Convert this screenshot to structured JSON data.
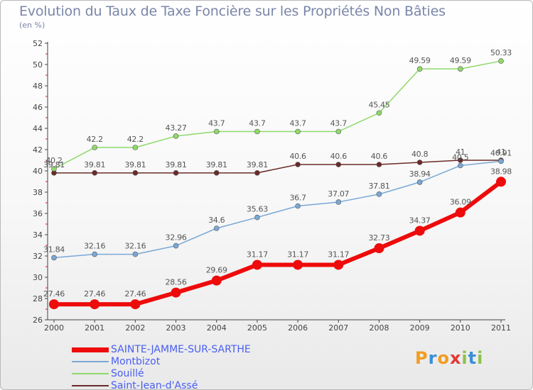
{
  "title": "Evolution du Taux de Taxe Foncière sur les Propriétés Non Bâties",
  "subtitle": "(en %)",
  "brand": {
    "text": "Proxiti",
    "colors": [
      "#f39c1f",
      "#3a8fd6",
      "#f39c1f",
      "#e53935",
      "#8bc34a",
      "#3a8fd6",
      "#8bc34a"
    ]
  },
  "chart_data": {
    "type": "line",
    "x": [
      "2000",
      "2001",
      "2002",
      "2003",
      "2004",
      "2005",
      "2006",
      "2007",
      "2008",
      "2009",
      "2010",
      "2011"
    ],
    "ylim": [
      26,
      52
    ],
    "yticks": [
      "26",
      "28",
      "30",
      "32",
      "34",
      "36",
      "38",
      "40",
      "42",
      "44",
      "46",
      "48",
      "50",
      "52"
    ],
    "grid": false,
    "legend_position": "bottom-left",
    "series": [
      {
        "name": "Saint-Jean-d'Assé",
        "color": "#6b2a2a",
        "width": 1.5,
        "marker": 3.5,
        "values": [
          39.81,
          39.81,
          39.81,
          39.81,
          39.81,
          39.81,
          40.6,
          40.6,
          40.6,
          40.8,
          41,
          41
        ],
        "labels": [
          "39.81",
          "39.81",
          "39.81",
          "39.81",
          "39.81",
          "39.81",
          "40.6",
          "40.6",
          "40.6",
          "40.8",
          "41",
          "41"
        ]
      },
      {
        "name": "Souillé",
        "color": "#8fd96a",
        "width": 1.5,
        "marker": 3.5,
        "values": [
          40.2,
          42.2,
          42.2,
          43.27,
          43.7,
          43.7,
          43.7,
          43.7,
          45.45,
          49.59,
          49.59,
          50.33
        ],
        "labels": [
          "40.2",
          "42.2",
          "42.2",
          "43.27",
          "43.7",
          "43.7",
          "43.7",
          "43.7",
          "45.45",
          "49.59",
          "49.59",
          "50.33"
        ]
      },
      {
        "name": "Montbizot",
        "color": "#7aa8d6",
        "width": 1.5,
        "marker": 3.5,
        "values": [
          31.84,
          32.16,
          32.16,
          32.96,
          34.6,
          35.63,
          36.7,
          37.07,
          37.81,
          38.94,
          40.5,
          40.91
        ],
        "labels": [
          "31.84",
          "32.16",
          "32.16",
          "32.96",
          "34.6",
          "35.63",
          "36.7",
          "37.07",
          "37.81",
          "38.94",
          "40.5",
          "40.91"
        ]
      },
      {
        "name": "SAINTE-JAMME-SUR-SARTHE",
        "color": "#ee0b0b",
        "width": 6,
        "marker": 7,
        "values": [
          27.46,
          27.46,
          27.46,
          28.56,
          29.69,
          31.17,
          31.17,
          31.17,
          32.73,
          34.37,
          36.09,
          38.98
        ],
        "labels": [
          "27.46",
          "27.46",
          "27.46",
          "28.56",
          "29.69",
          "31.17",
          "31.17",
          "31.17",
          "32.73",
          "34.37",
          "36.09",
          "38.98"
        ]
      }
    ],
    "legend": [
      "SAINTE-JAMME-SUR-SARTHE",
      "Montbizot",
      "Souillé",
      "Saint-Jean-d'Assé"
    ]
  }
}
